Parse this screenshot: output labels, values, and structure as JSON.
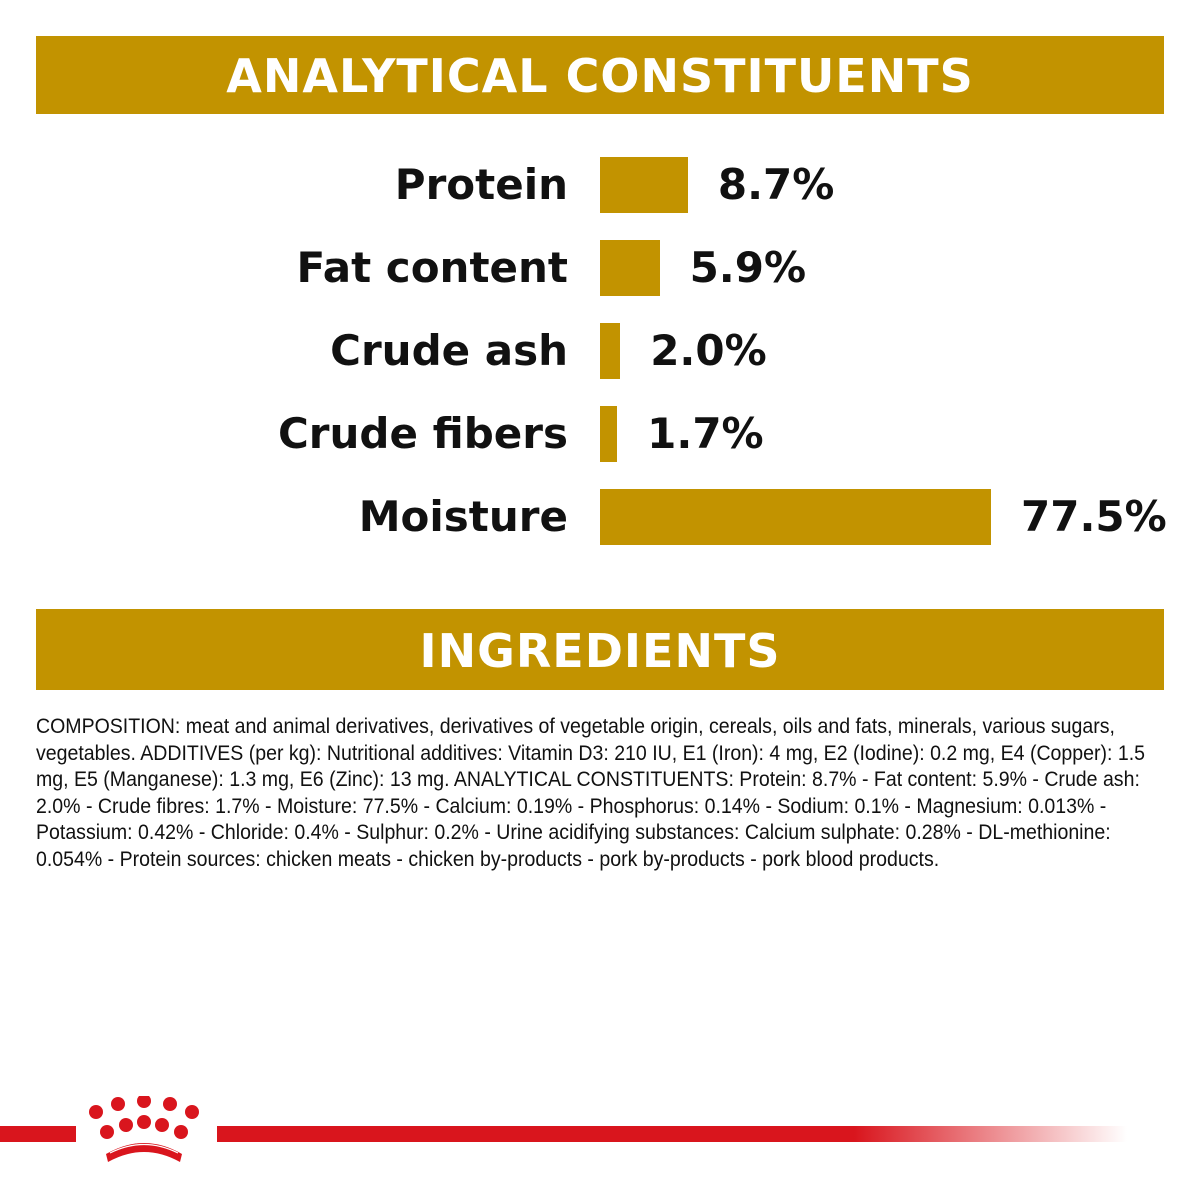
{
  "analytical": {
    "title": "ANALYTICAL CONSTITUENTS",
    "items": [
      {
        "label": "Protein",
        "value": 8.7,
        "display": "8.7%"
      },
      {
        "label": "Fat content",
        "value": 5.9,
        "display": "5.9%"
      },
      {
        "label": "Crude ash",
        "value": 2.0,
        "display": "2.0%"
      },
      {
        "label": "Crude fibers",
        "value": 1.7,
        "display": "1.7%"
      },
      {
        "label": "Moisture",
        "value": 77.5,
        "display": "77.5%"
      }
    ]
  },
  "ingredients": {
    "title": "INGREDIENTS",
    "text": "COMPOSITION: meat and animal derivatives, derivatives of vegetable origin, cereals, oils and fats, minerals, various sugars, vegetables. ADDITIVES (per kg): Nutritional additives: Vitamin D3: 210 IU, E1 (Iron): 4 mg, E2 (Iodine): 0.2 mg, E4 (Copper): 1.5 mg, E5 (Manganese): 1.3 mg, E6 (Zinc): 13 mg. ANALYTICAL CONSTITUENTS: Protein: 8.7% - Fat content: 5.9% - Crude ash: 2.0% - Crude fibres: 1.7% - Moisture: 77.5% - Calcium: 0.19% - Phosphorus: 0.14% - Sodium: 0.1% - Magnesium: 0.013% - Potassium: 0.42% - Chloride: 0.4% - Sulphur: 0.2% - Urine acidifying substances: Calcium sulphate: 0.28% - DL-methionine: 0.054% - Protein sources: chicken meats - chicken by-products - pork by-products - pork blood products."
  },
  "colors": {
    "accent": "#C29300",
    "brand_red": "#D9151D"
  },
  "logo": {
    "icon": "royal-canin-crown-icon"
  }
}
